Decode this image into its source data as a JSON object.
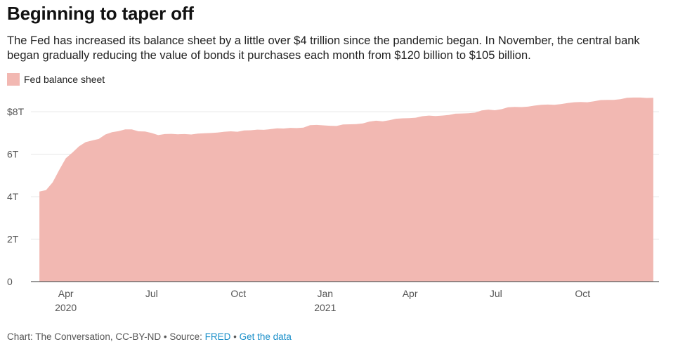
{
  "header": {
    "title": "Beginning to taper off",
    "subtitle": "The Fed has increased its balance sheet by a little over $4 trillion since the pandemic began. In November, the central bank began gradually reducing the value of bonds it purchases each month from $120 billion to $105 billion."
  },
  "legend": {
    "label": "Fed balance sheet"
  },
  "colors": {
    "area": "#f2b8b2",
    "grid": "#e6e6e6",
    "axis": "#333333",
    "text": "#555555",
    "link": "#1a8fc9"
  },
  "chart_data": {
    "type": "area",
    "title": "Beginning to taper off",
    "series": [
      {
        "name": "Fed balance sheet",
        "points": [
          [
            "2020-03-04",
            4.24
          ],
          [
            "2020-03-11",
            4.31
          ],
          [
            "2020-03-18",
            4.67
          ],
          [
            "2020-03-25",
            5.26
          ],
          [
            "2020-04-01",
            5.81
          ],
          [
            "2020-04-08",
            6.08
          ],
          [
            "2020-04-15",
            6.37
          ],
          [
            "2020-04-22",
            6.57
          ],
          [
            "2020-04-29",
            6.65
          ],
          [
            "2020-05-06",
            6.72
          ],
          [
            "2020-05-13",
            6.93
          ],
          [
            "2020-05-20",
            7.04
          ],
          [
            "2020-05-27",
            7.09
          ],
          [
            "2020-06-03",
            7.17
          ],
          [
            "2020-06-10",
            7.17
          ],
          [
            "2020-06-17",
            7.08
          ],
          [
            "2020-06-24",
            7.07
          ],
          [
            "2020-07-01",
            7.0
          ],
          [
            "2020-07-08",
            6.9
          ],
          [
            "2020-07-15",
            6.95
          ],
          [
            "2020-07-22",
            6.96
          ],
          [
            "2020-07-29",
            6.94
          ],
          [
            "2020-08-05",
            6.95
          ],
          [
            "2020-08-12",
            6.93
          ],
          [
            "2020-08-19",
            6.97
          ],
          [
            "2020-08-26",
            6.99
          ],
          [
            "2020-09-02",
            7.0
          ],
          [
            "2020-09-09",
            7.02
          ],
          [
            "2020-09-16",
            7.06
          ],
          [
            "2020-09-23",
            7.08
          ],
          [
            "2020-09-30",
            7.06
          ],
          [
            "2020-10-07",
            7.12
          ],
          [
            "2020-10-14",
            7.13
          ],
          [
            "2020-10-21",
            7.16
          ],
          [
            "2020-10-28",
            7.15
          ],
          [
            "2020-11-04",
            7.18
          ],
          [
            "2020-11-11",
            7.22
          ],
          [
            "2020-11-18",
            7.21
          ],
          [
            "2020-11-25",
            7.24
          ],
          [
            "2020-12-02",
            7.23
          ],
          [
            "2020-12-09",
            7.25
          ],
          [
            "2020-12-16",
            7.37
          ],
          [
            "2020-12-23",
            7.38
          ],
          [
            "2020-12-30",
            7.36
          ],
          [
            "2021-01-06",
            7.34
          ],
          [
            "2021-01-13",
            7.33
          ],
          [
            "2021-01-20",
            7.4
          ],
          [
            "2021-01-27",
            7.41
          ],
          [
            "2021-02-03",
            7.42
          ],
          [
            "2021-02-10",
            7.45
          ],
          [
            "2021-02-17",
            7.54
          ],
          [
            "2021-02-24",
            7.58
          ],
          [
            "2021-03-03",
            7.55
          ],
          [
            "2021-03-10",
            7.6
          ],
          [
            "2021-03-17",
            7.67
          ],
          [
            "2021-03-24",
            7.69
          ],
          [
            "2021-03-31",
            7.7
          ],
          [
            "2021-04-07",
            7.72
          ],
          [
            "2021-04-14",
            7.79
          ],
          [
            "2021-04-21",
            7.82
          ],
          [
            "2021-04-28",
            7.8
          ],
          [
            "2021-05-05",
            7.82
          ],
          [
            "2021-05-12",
            7.85
          ],
          [
            "2021-05-19",
            7.91
          ],
          [
            "2021-05-26",
            7.92
          ],
          [
            "2021-06-02",
            7.93
          ],
          [
            "2021-06-09",
            7.96
          ],
          [
            "2021-06-16",
            8.06
          ],
          [
            "2021-06-23",
            8.1
          ],
          [
            "2021-06-30",
            8.07
          ],
          [
            "2021-07-07",
            8.12
          ],
          [
            "2021-07-14",
            8.21
          ],
          [
            "2021-07-21",
            8.23
          ],
          [
            "2021-07-28",
            8.22
          ],
          [
            "2021-08-04",
            8.24
          ],
          [
            "2021-08-11",
            8.29
          ],
          [
            "2021-08-18",
            8.33
          ],
          [
            "2021-08-25",
            8.34
          ],
          [
            "2021-09-01",
            8.33
          ],
          [
            "2021-09-08",
            8.36
          ],
          [
            "2021-09-15",
            8.41
          ],
          [
            "2021-09-22",
            8.45
          ],
          [
            "2021-09-29",
            8.46
          ],
          [
            "2021-10-06",
            8.45
          ],
          [
            "2021-10-13",
            8.49
          ],
          [
            "2021-10-20",
            8.55
          ],
          [
            "2021-10-27",
            8.56
          ],
          [
            "2021-11-03",
            8.56
          ],
          [
            "2021-11-10",
            8.59
          ],
          [
            "2021-11-17",
            8.66
          ],
          [
            "2021-11-24",
            8.67
          ],
          [
            "2021-12-01",
            8.67
          ],
          [
            "2021-12-08",
            8.65
          ],
          [
            "2021-12-15",
            8.66
          ]
        ]
      }
    ],
    "x_range": [
      "2020-02-24",
      "2021-12-21"
    ],
    "ylim": [
      0,
      8.7
    ],
    "y_ticks": [
      {
        "value": 0,
        "label": "0"
      },
      {
        "value": 2,
        "label": "2T"
      },
      {
        "value": 4,
        "label": "4T"
      },
      {
        "value": 6,
        "label": "6T"
      },
      {
        "value": 8,
        "label": "$8T"
      }
    ],
    "x_ticks": [
      {
        "date": "2020-04-01",
        "label": "Apr",
        "sub": "2020"
      },
      {
        "date": "2020-07-01",
        "label": "Jul",
        "sub": ""
      },
      {
        "date": "2020-10-01",
        "label": "Oct",
        "sub": ""
      },
      {
        "date": "2021-01-01",
        "label": "Jan",
        "sub": "2021"
      },
      {
        "date": "2021-04-01",
        "label": "Apr",
        "sub": ""
      },
      {
        "date": "2021-07-01",
        "label": "Jul",
        "sub": ""
      },
      {
        "date": "2021-10-01",
        "label": "Oct",
        "sub": ""
      }
    ],
    "grid": true,
    "legend_position": "top-left"
  },
  "footer": {
    "prefix": "Chart: The Conversation, CC-BY-ND • Source: ",
    "source_link": "FRED",
    "separator": " • ",
    "data_link": "Get the data"
  }
}
